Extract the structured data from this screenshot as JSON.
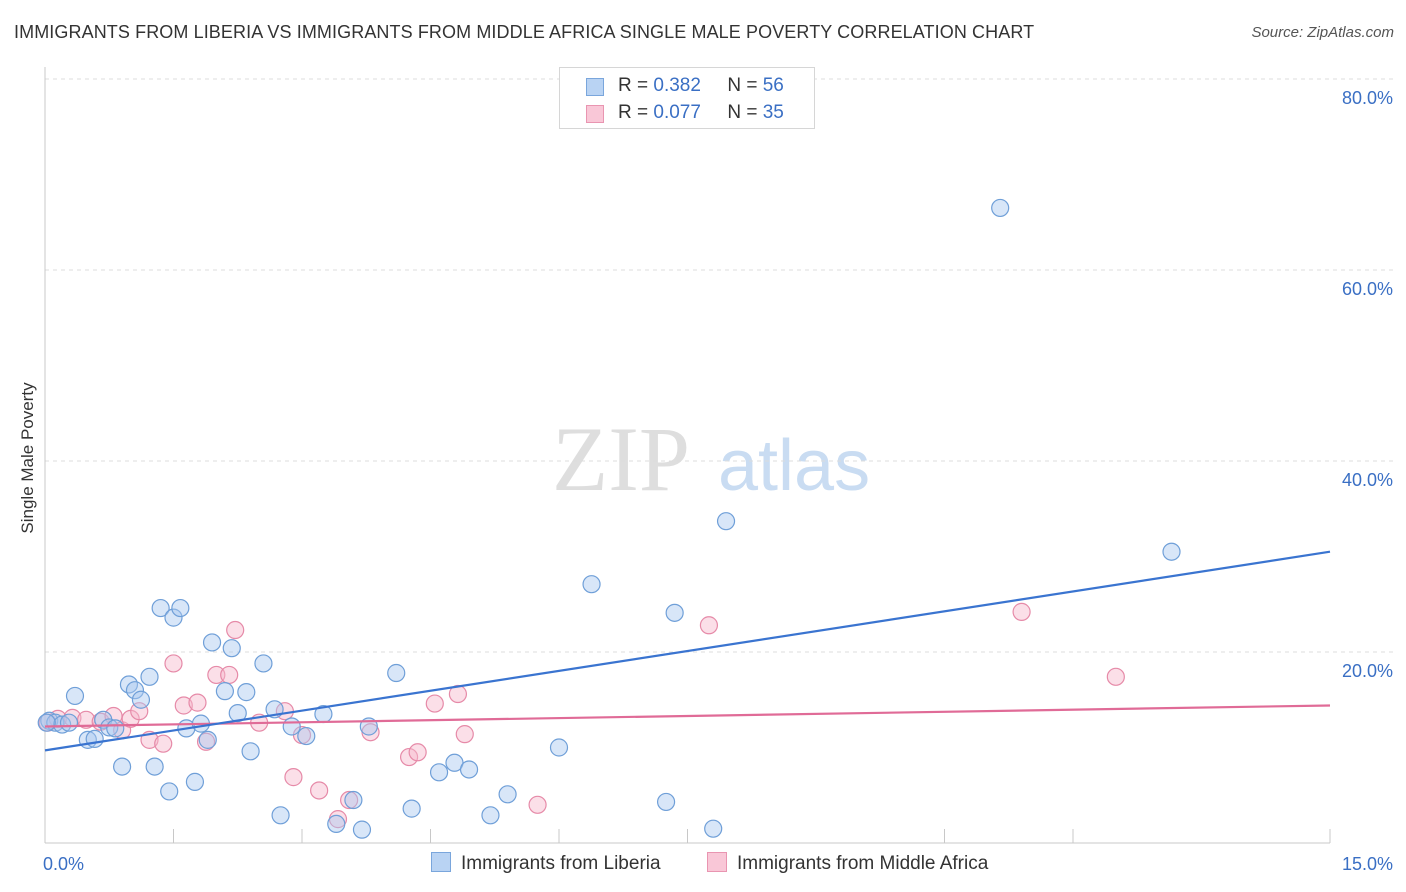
{
  "title": "IMMIGRANTS FROM LIBERIA VS IMMIGRANTS FROM MIDDLE AFRICA SINGLE MALE POVERTY CORRELATION CHART",
  "source": "Source: ZipAtlas.com",
  "watermark": {
    "zip": "ZIP",
    "atlas": "atlas"
  },
  "legend": {
    "r_label": "R =",
    "n_label": "N =",
    "series1": {
      "r": "0.382",
      "n": "56"
    },
    "series2": {
      "r": "0.077",
      "n": "35"
    }
  },
  "bottom_legend": {
    "series1": "Immigrants from Liberia",
    "series2": "Immigrants from Middle Africa"
  },
  "colors": {
    "series1_fill": "#a8c8f0",
    "series1_stroke": "#6f9fd8",
    "series1_line": "#3a74d0",
    "series2_fill": "#f6b8cc",
    "series2_stroke": "#e68aa8",
    "series2_line": "#e06b97",
    "axis_text": "#3a6fc4",
    "grid": "#dcdcdc"
  },
  "chart_data": {
    "type": "scatter",
    "title": "IMMIGRANTS FROM LIBERIA VS IMMIGRANTS FROM MIDDLE AFRICA SINGLE MALE POVERTY CORRELATION CHART",
    "xlabel": "",
    "ylabel": "Single Male Poverty",
    "xlim": [
      0,
      15
    ],
    "ylim": [
      0,
      80
    ],
    "x_tick_labels": [
      {
        "value": 0,
        "label": "0.0%"
      },
      {
        "value": 15,
        "label": "15.0%"
      }
    ],
    "y_tick_labels": [
      {
        "value": 20,
        "label": "20.0%"
      },
      {
        "value": 40,
        "label": "40.0%"
      },
      {
        "value": 60,
        "label": "60.0%"
      },
      {
        "value": 80,
        "label": "80.0%"
      }
    ],
    "x_minor_ticks": [
      1.5,
      3.0,
      4.5,
      6.0,
      7.5,
      10.5,
      12.0,
      15.0
    ],
    "grid": true,
    "series": [
      {
        "name": "Immigrants from Liberia",
        "r": 0.382,
        "n": 56,
        "trend": {
          "x": [
            0,
            15
          ],
          "y": [
            9.7,
            30.5
          ]
        },
        "points": [
          [
            0.05,
            12.8
          ],
          [
            0.12,
            12.6
          ],
          [
            0.2,
            12.4
          ],
          [
            0.28,
            12.6
          ],
          [
            0.35,
            15.4
          ],
          [
            0.5,
            10.8
          ],
          [
            0.58,
            10.9
          ],
          [
            0.68,
            12.9
          ],
          [
            0.75,
            12.1
          ],
          [
            0.82,
            12.0
          ],
          [
            0.9,
            8.0
          ],
          [
            0.98,
            16.6
          ],
          [
            1.05,
            16.0
          ],
          [
            1.12,
            15.0
          ],
          [
            1.22,
            17.4
          ],
          [
            1.28,
            8.0
          ],
          [
            1.35,
            24.6
          ],
          [
            1.45,
            5.4
          ],
          [
            1.5,
            23.6
          ],
          [
            1.58,
            24.6
          ],
          [
            1.65,
            12.0
          ],
          [
            1.75,
            6.4
          ],
          [
            1.82,
            12.5
          ],
          [
            1.9,
            10.8
          ],
          [
            1.95,
            21.0
          ],
          [
            2.1,
            15.9
          ],
          [
            2.18,
            20.4
          ],
          [
            2.25,
            13.6
          ],
          [
            2.35,
            15.8
          ],
          [
            2.4,
            9.6
          ],
          [
            2.55,
            18.8
          ],
          [
            2.68,
            14.0
          ],
          [
            2.75,
            2.9
          ],
          [
            2.88,
            12.2
          ],
          [
            3.05,
            11.2
          ],
          [
            3.25,
            13.5
          ],
          [
            3.4,
            2.0
          ],
          [
            3.6,
            4.5
          ],
          [
            3.7,
            1.4
          ],
          [
            3.78,
            12.2
          ],
          [
            4.1,
            17.8
          ],
          [
            4.28,
            3.6
          ],
          [
            4.6,
            7.4
          ],
          [
            4.78,
            8.4
          ],
          [
            4.95,
            7.7
          ],
          [
            5.2,
            2.9
          ],
          [
            5.4,
            5.1
          ],
          [
            6.0,
            10.0
          ],
          [
            6.38,
            27.1
          ],
          [
            7.25,
            4.3
          ],
          [
            7.35,
            24.1
          ],
          [
            7.8,
            1.5
          ],
          [
            7.95,
            33.7
          ],
          [
            11.15,
            66.5
          ],
          [
            13.15,
            30.5
          ],
          [
            0.02,
            12.6
          ]
        ]
      },
      {
        "name": "Immigrants from Middle Africa",
        "r": 0.077,
        "n": 35,
        "trend": {
          "x": [
            0,
            15
          ],
          "y": [
            12.2,
            14.4
          ]
        },
        "points": [
          [
            0.03,
            12.6
          ],
          [
            0.15,
            13.0
          ],
          [
            0.32,
            13.1
          ],
          [
            0.48,
            12.9
          ],
          [
            0.65,
            12.7
          ],
          [
            0.8,
            13.3
          ],
          [
            0.9,
            11.8
          ],
          [
            1.0,
            13.0
          ],
          [
            1.1,
            13.8
          ],
          [
            1.22,
            10.8
          ],
          [
            1.38,
            10.4
          ],
          [
            1.5,
            18.8
          ],
          [
            1.62,
            14.4
          ],
          [
            1.78,
            14.7
          ],
          [
            1.88,
            10.6
          ],
          [
            2.0,
            17.6
          ],
          [
            2.15,
            17.6
          ],
          [
            2.22,
            22.3
          ],
          [
            2.5,
            12.6
          ],
          [
            2.8,
            13.8
          ],
          [
            2.9,
            6.9
          ],
          [
            3.0,
            11.3
          ],
          [
            3.2,
            5.5
          ],
          [
            3.42,
            2.5
          ],
          [
            3.55,
            4.5
          ],
          [
            3.8,
            11.6
          ],
          [
            4.25,
            9.0
          ],
          [
            4.35,
            9.5
          ],
          [
            4.55,
            14.6
          ],
          [
            4.82,
            15.6
          ],
          [
            4.9,
            11.4
          ],
          [
            5.75,
            4.0
          ],
          [
            7.75,
            22.8
          ],
          [
            11.4,
            24.2
          ],
          [
            12.5,
            17.4
          ]
        ]
      }
    ]
  }
}
